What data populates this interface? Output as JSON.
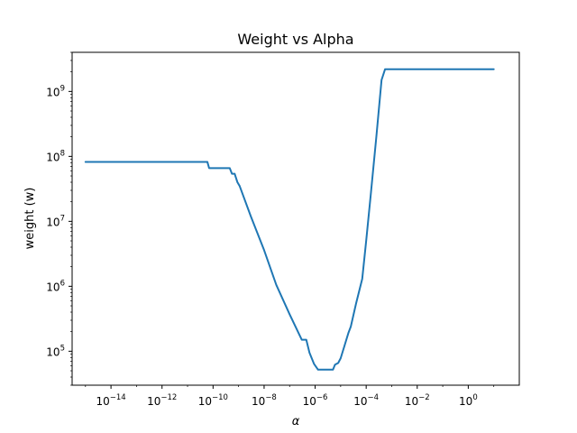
{
  "chart_data": {
    "type": "line",
    "title": "Weight vs Alpha",
    "xlabel": "α",
    "ylabel": "weight (w)",
    "xscale": "log",
    "yscale": "log",
    "xlim": [
      3e-16,
      100
    ],
    "ylim": [
      30000,
      4000000000
    ],
    "grid": false,
    "legend": "none",
    "color": "#1f77b4",
    "xticks": [
      {
        "base": "10",
        "exp": "−14",
        "value": 1e-14
      },
      {
        "base": "10",
        "exp": "−12",
        "value": 1e-12
      },
      {
        "base": "10",
        "exp": "−10",
        "value": 1e-10
      },
      {
        "base": "10",
        "exp": "−8",
        "value": 1e-08
      },
      {
        "base": "10",
        "exp": "−6",
        "value": 1e-06
      },
      {
        "base": "10",
        "exp": "−4",
        "value": 0.0001
      },
      {
        "base": "10",
        "exp": "−2",
        "value": 0.01
      },
      {
        "base": "10",
        "exp": "0",
        "value": 1
      }
    ],
    "yticks": [
      {
        "base": "10",
        "exp": "5",
        "value": 100000.0
      },
      {
        "base": "10",
        "exp": "6",
        "value": 1000000.0
      },
      {
        "base": "10",
        "exp": "7",
        "value": 10000000.0
      },
      {
        "base": "10",
        "exp": "8",
        "value": 100000000.0
      },
      {
        "base": "10",
        "exp": "9",
        "value": 1000000000.0
      }
    ],
    "series": [
      {
        "x": [
          1e-15,
          3e-14,
          1e-12,
          6e-11,
          7e-11,
          4.5e-10,
          5.5e-10,
          7e-10,
          9e-10,
          1.1e-09,
          3e-09,
          1e-08,
          3e-08,
          1e-07,
          3e-07,
          4.5e-07,
          6e-07,
          9e-07,
          1.3e-06,
          2.5e-06,
          4e-06,
          5e-06,
          6e-06,
          8e-06,
          1e-05,
          1.4e-05,
          2e-05,
          2.5e-05,
          4e-05,
          7e-05,
          0.0001,
          0.00015,
          0.00025,
          0.0004,
          0.00055,
          0.0007,
          0.001,
          0.01,
          0.1,
          1,
          10
        ],
        "y": [
          82000000,
          82000000,
          82000000,
          82000000,
          66000000,
          66000000,
          54000000,
          54000000,
          40000000,
          35000000,
          12000000,
          3600000,
          1050000,
          370000,
          150000,
          150000,
          95000,
          64000,
          52000,
          52000,
          52000,
          52000,
          62000,
          66000,
          78000,
          120000,
          190000,
          240000,
          540000,
          1300000,
          5000000,
          25000000,
          200000000,
          1500000000,
          2200000000,
          2200000000,
          2200000000,
          2200000000,
          2200000000,
          2200000000,
          2200000000
        ]
      }
    ]
  }
}
